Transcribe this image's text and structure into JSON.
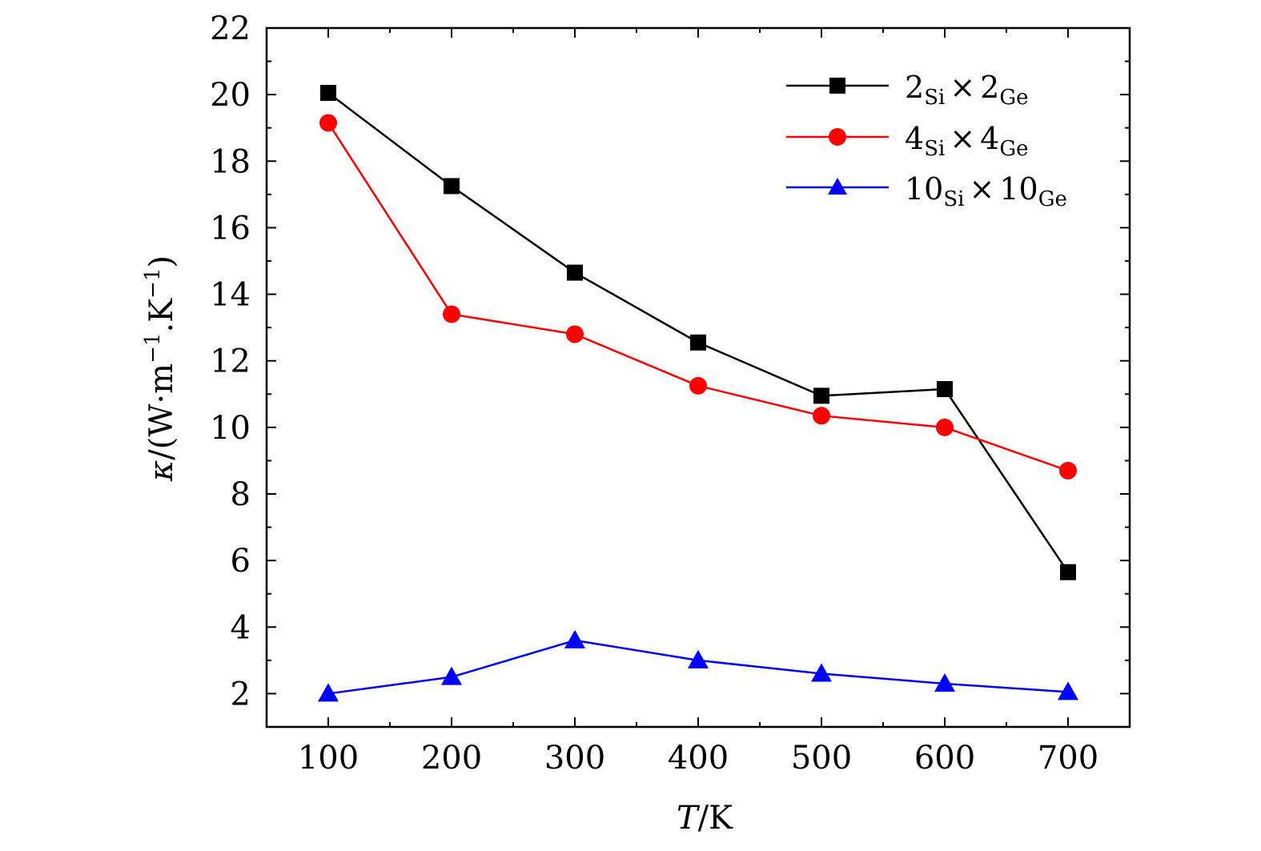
{
  "chart_data": {
    "type": "line",
    "title": "",
    "xlabel": "T/K",
    "xlabel_parts": {
      "var": "T",
      "unit": "K"
    },
    "ylabel": "κ/(W·m⁻¹.K⁻¹)",
    "ylabel_parts": {
      "var": "κ",
      "open": "/(W·m",
      "exp1": "−1",
      "mid": ".K",
      "exp2": "−1",
      "close": ")"
    },
    "xlim": [
      50,
      750
    ],
    "ylim": [
      1,
      22
    ],
    "x_ticks": [
      100,
      200,
      300,
      400,
      500,
      600,
      700
    ],
    "x_minor_ticks": [
      150,
      250,
      350,
      450,
      550,
      650
    ],
    "y_ticks": [
      2,
      4,
      6,
      8,
      10,
      12,
      14,
      16,
      18,
      20,
      22
    ],
    "y_minor_ticks": [
      3,
      5,
      7,
      9,
      11,
      13,
      15,
      17,
      19,
      21
    ],
    "x": [
      100,
      200,
      300,
      400,
      500,
      600,
      700
    ],
    "legend_position": "top-right",
    "grid": false,
    "series": [
      {
        "name": "2Si×2Ge",
        "label": {
          "a": "2",
          "sa": "Si",
          "times": "×",
          "b": "2",
          "sb": "Ge"
        },
        "color": "#000000",
        "marker": "square",
        "values": [
          20.05,
          17.25,
          14.65,
          12.55,
          10.95,
          11.15,
          5.65
        ]
      },
      {
        "name": "4Si×4Ge",
        "label": {
          "a": "4",
          "sa": "Si",
          "times": "×",
          "b": "4",
          "sb": "Ge"
        },
        "color": "#ff0000",
        "marker": "circle",
        "values": [
          19.15,
          13.4,
          12.8,
          11.25,
          10.35,
          10.0,
          8.7
        ]
      },
      {
        "name": "10Si×10Ge",
        "label": {
          "a": "10",
          "sa": "Si",
          "times": "×",
          "b": "10",
          "sb": "Ge"
        },
        "color": "#0000ff",
        "marker": "triangle",
        "values": [
          2.0,
          2.5,
          3.6,
          3.0,
          2.6,
          2.3,
          2.05
        ]
      }
    ]
  }
}
